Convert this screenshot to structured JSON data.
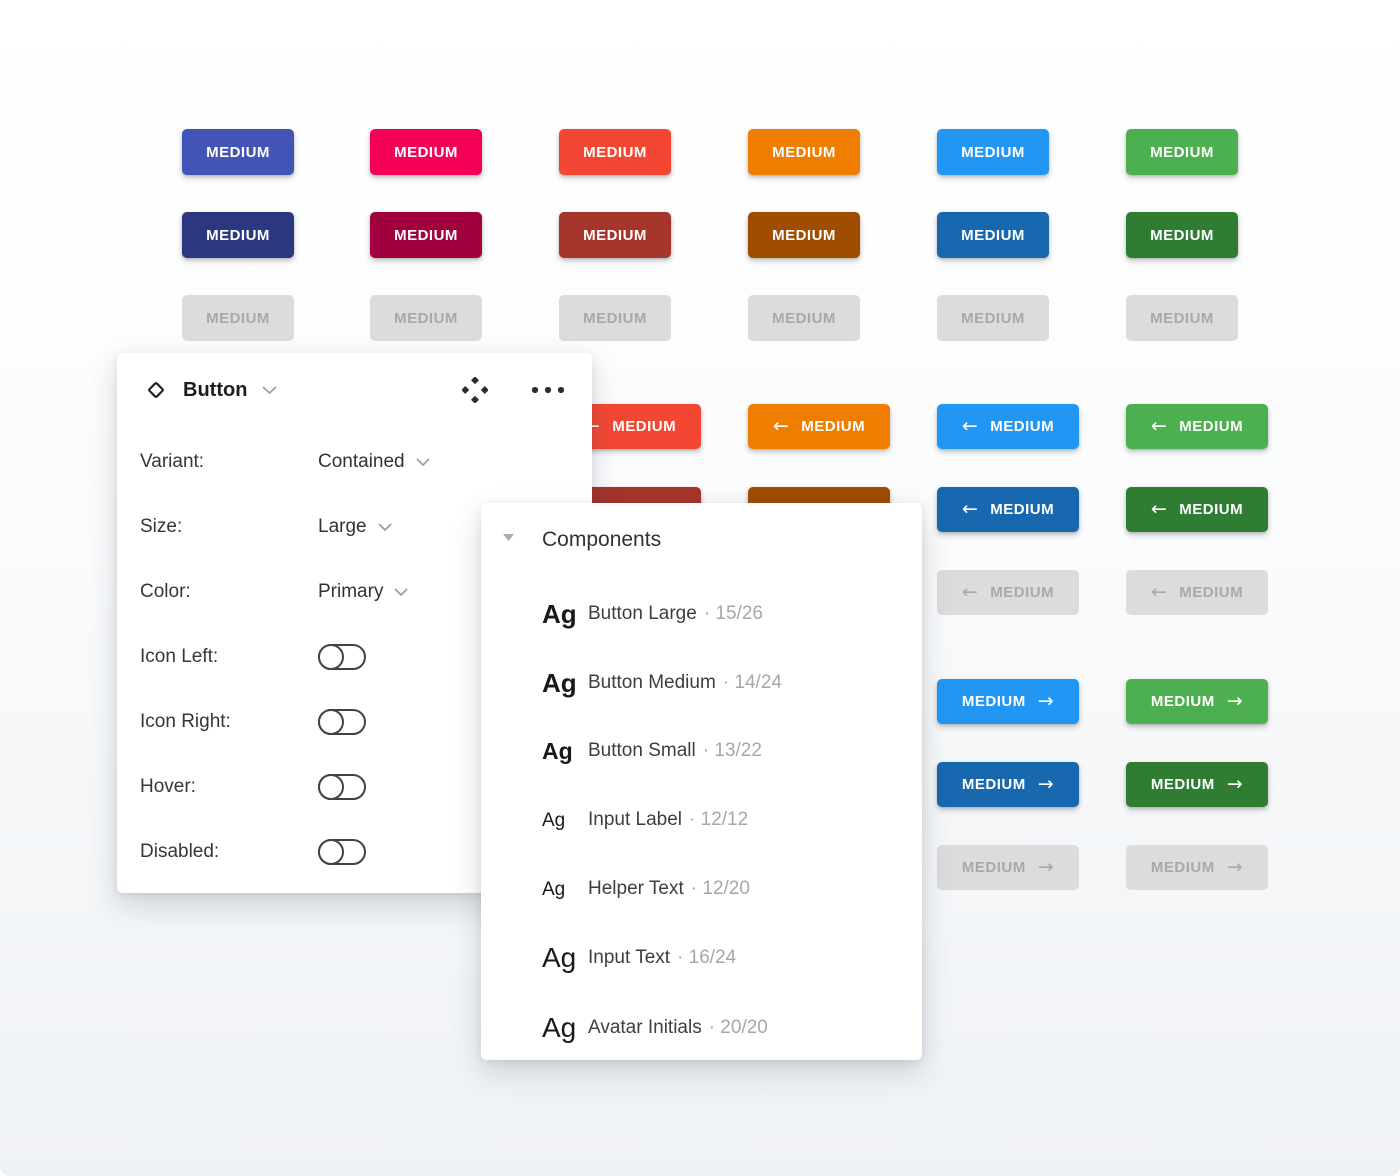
{
  "button_label": "MEDIUM",
  "palette": {
    "indigo": {
      "base": "#4254B5",
      "dark": "#2B3780"
    },
    "pink": {
      "base": "#F50057",
      "dark": "#A1003F"
    },
    "red": {
      "base": "#F44733",
      "dark": "#A6352B"
    },
    "orange": {
      "base": "#EF7D00",
      "dark": "#A04D00"
    },
    "blue": {
      "base": "#2196F3",
      "dark": "#1768AF"
    },
    "green": {
      "base": "#4CAF50",
      "dark": "#2E7D32"
    }
  },
  "disabled_style": {
    "bg": "#DCDCDC",
    "text": "#A9A9A9"
  },
  "grid": {
    "groups": [
      {
        "kind": "plain",
        "columns": [
          "indigo",
          "pink",
          "red",
          "orange",
          "blue",
          "green"
        ],
        "rows": [
          "base",
          "dark",
          "disabled"
        ]
      },
      {
        "kind": "icon-left",
        "columns": [
          "red",
          "orange",
          "blue",
          "green"
        ],
        "rows": [
          "base",
          "dark",
          "disabled"
        ]
      },
      {
        "kind": "icon-right",
        "columns": [
          "blue",
          "green"
        ],
        "rows": [
          "base",
          "dark",
          "disabled"
        ]
      }
    ]
  },
  "button_panel": {
    "title": "Button",
    "properties": [
      {
        "label": "Variant:",
        "type": "dropdown",
        "value": "Contained"
      },
      {
        "label": "Size:",
        "type": "dropdown",
        "value": "Large"
      },
      {
        "label": "Color:",
        "type": "dropdown",
        "value": "Primary"
      },
      {
        "label": "Icon Left:",
        "type": "toggle",
        "on": false
      },
      {
        "label": "Icon Right:",
        "type": "toggle",
        "on": false
      },
      {
        "label": "Hover:",
        "type": "toggle",
        "on": false
      },
      {
        "label": "Disabled:",
        "type": "toggle",
        "on": false
      }
    ]
  },
  "components_panel": {
    "title": "Components",
    "separator": "·",
    "preview_text": "Ag",
    "items": [
      {
        "name": "Button Large",
        "count": "15/26",
        "preview": {
          "size": 26,
          "weight": 700
        }
      },
      {
        "name": "Button Medium",
        "count": "14/24",
        "preview": {
          "size": 26,
          "weight": 700
        }
      },
      {
        "name": "Button Small",
        "count": "13/22",
        "preview": {
          "size": 23,
          "weight": 700
        }
      },
      {
        "name": "Input Label",
        "count": "12/12",
        "preview": {
          "size": 19,
          "weight": 400
        }
      },
      {
        "name": "Helper Text",
        "count": "12/20",
        "preview": {
          "size": 19,
          "weight": 400
        }
      },
      {
        "name": "Input Text",
        "count": "16/24",
        "preview": {
          "size": 28,
          "weight": 400
        }
      },
      {
        "name": "Avatar Initials",
        "count": "20/20",
        "preview": {
          "size": 28,
          "weight": 500
        }
      }
    ]
  }
}
